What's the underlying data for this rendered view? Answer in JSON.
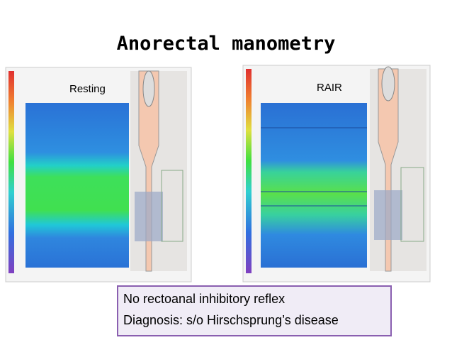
{
  "title": "Anorectal manometry",
  "panels": [
    {
      "label": "Resting"
    },
    {
      "label": "RAIR"
    }
  ],
  "caption": {
    "lines": [
      "No rectoanal inhibitory reflex",
      "Diagnosis: s/o Hirschsprung’s disease"
    ]
  }
}
